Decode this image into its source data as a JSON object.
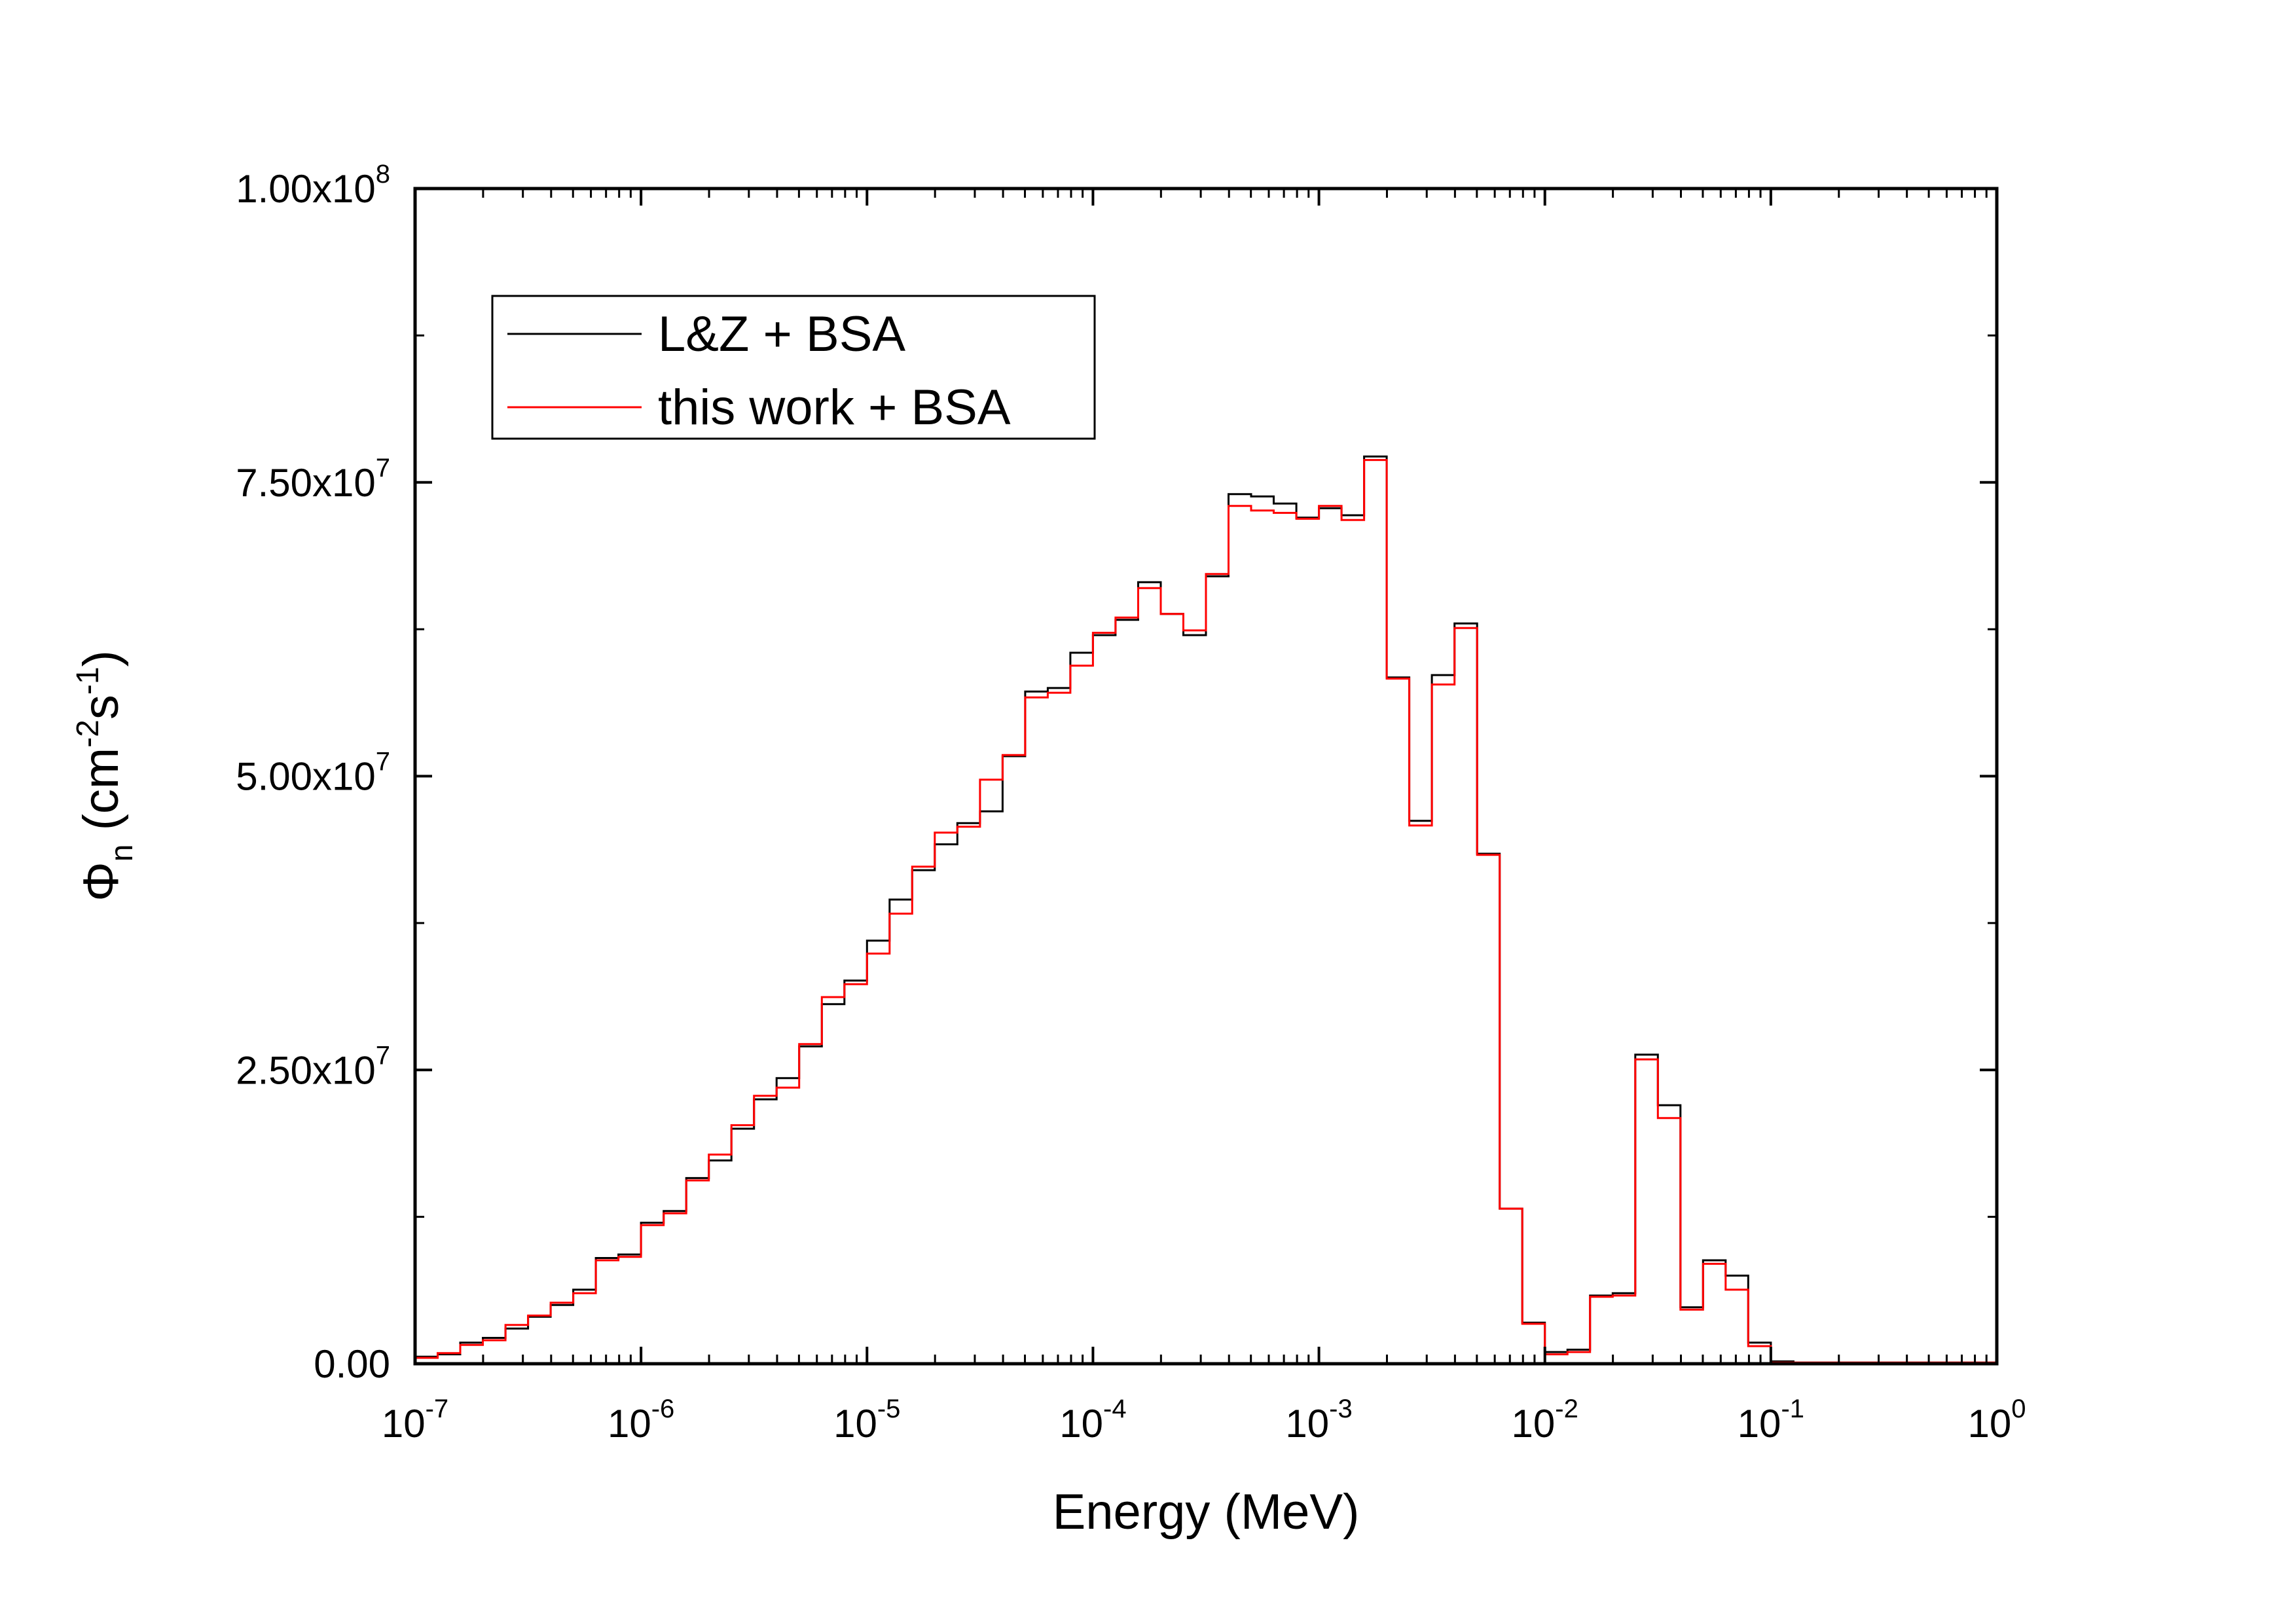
{
  "chart_data": {
    "type": "line",
    "step": true,
    "title": "",
    "xlabel": "Energy (MeV)",
    "ylabel": {
      "symbol": "Φ",
      "sub": "n",
      "unit_prefix": " (cm",
      "exp1": "-2",
      "mid": "s",
      "exp2": "-1",
      "unit_suffix": ")"
    },
    "xscale": "log",
    "xlim": [
      1e-07,
      1
    ],
    "ylim": [
      0,
      100000000
    ],
    "grid": false,
    "legend_position": "top-left",
    "x_ticks": [
      {
        "value": 1e-07,
        "base": "10",
        "exp": "-7"
      },
      {
        "value": 1e-06,
        "base": "10",
        "exp": "-6"
      },
      {
        "value": 1e-05,
        "base": "10",
        "exp": "-5"
      },
      {
        "value": 0.0001,
        "base": "10",
        "exp": "-4"
      },
      {
        "value": 0.001,
        "base": "10",
        "exp": "-3"
      },
      {
        "value": 0.01,
        "base": "10",
        "exp": "-2"
      },
      {
        "value": 0.1,
        "base": "10",
        "exp": "-1"
      },
      {
        "value": 1,
        "base": "10",
        "exp": "0"
      }
    ],
    "y_ticks": [
      {
        "value": 0,
        "mant": "0.00",
        "exp": ""
      },
      {
        "value": 25000000,
        "mant": "2.50x10",
        "exp": "7"
      },
      {
        "value": 50000000,
        "mant": "5.00x10",
        "exp": "7"
      },
      {
        "value": 75000000,
        "mant": "7.50x10",
        "exp": "7"
      },
      {
        "value": 100000000,
        "mant": "1.00x10",
        "exp": "8"
      }
    ],
    "y_minor_step": 12500000,
    "bin_edges_log10": [
      -7.0,
      -6.9,
      -6.8,
      -6.7,
      -6.6,
      -6.5,
      -6.4,
      -6.3,
      -6.2,
      -6.1,
      -6.0,
      -5.9,
      -5.8,
      -5.7,
      -5.6,
      -5.5,
      -5.4,
      -5.3,
      -5.2,
      -5.1,
      -5.0,
      -4.9,
      -4.8,
      -4.7,
      -4.6,
      -4.5,
      -4.4,
      -4.3,
      -4.2,
      -4.1,
      -4.0,
      -3.9,
      -3.8,
      -3.7,
      -3.6,
      -3.5,
      -3.4,
      -3.3,
      -3.2,
      -3.1,
      -3.0,
      -2.9,
      -2.8,
      -2.7,
      -2.6,
      -2.5,
      -2.4,
      -2.3,
      -2.2,
      -2.1,
      -2.0,
      -1.9,
      -1.8,
      -1.7,
      -1.6,
      -1.5,
      -1.4,
      -1.3,
      -1.2,
      -1.1,
      -1.0,
      -0.9,
      -0.8,
      -0.7,
      -0.6,
      -0.5,
      -0.4,
      -0.3,
      -0.2,
      -0.1,
      0.0
    ],
    "series": [
      {
        "name": "L&Z + BSA",
        "color": "#000000",
        "values": [
          600000,
          800000,
          1800000,
          2200000,
          3000000,
          4000000,
          5000000,
          6300000,
          9000000,
          9300000,
          12000000,
          13000000,
          15800000,
          17300000,
          20000000,
          22500000,
          24300000,
          27000000,
          30600000,
          32600000,
          36000000,
          39500000,
          42000000,
          44200000,
          46000000,
          47000000,
          51700000,
          57200000,
          57500000,
          60500000,
          62000000,
          63300000,
          66500000,
          63800000,
          62000000,
          67000000,
          74000000,
          73800000,
          73200000,
          72000000,
          72800000,
          72200000,
          77200000,
          58400000,
          46200000,
          58600000,
          63000000,
          43400000,
          13200000,
          3500000,
          1000000,
          1200000,
          5800000,
          6000000,
          26300000,
          22000000,
          4800000,
          8800000,
          7500000,
          1800000,
          200000,
          100000,
          100000,
          100000,
          100000,
          100000,
          100000,
          100000,
          100000,
          100000
        ]
      },
      {
        "name": "this work + BSA",
        "color": "#ff0000",
        "values": [
          500000,
          900000,
          1600000,
          2000000,
          3300000,
          4100000,
          5200000,
          6000000,
          8800000,
          9100000,
          11800000,
          12800000,
          15600000,
          17800000,
          20300000,
          22800000,
          23500000,
          27200000,
          31200000,
          32300000,
          34900000,
          38300000,
          42300000,
          45200000,
          45700000,
          49700000,
          51800000,
          56700000,
          57100000,
          59400000,
          62200000,
          63500000,
          66000000,
          63800000,
          62400000,
          67200000,
          73000000,
          72600000,
          72400000,
          71900000,
          73000000,
          71800000,
          76900000,
          58300000,
          45800000,
          57800000,
          62600000,
          43300000,
          13200000,
          3400000,
          800000,
          1000000,
          5700000,
          5800000,
          25900000,
          20900000,
          4600000,
          8500000,
          6300000,
          1500000,
          100000,
          100000,
          100000,
          100000,
          100000,
          100000,
          100000,
          100000,
          100000,
          100000
        ]
      }
    ]
  }
}
